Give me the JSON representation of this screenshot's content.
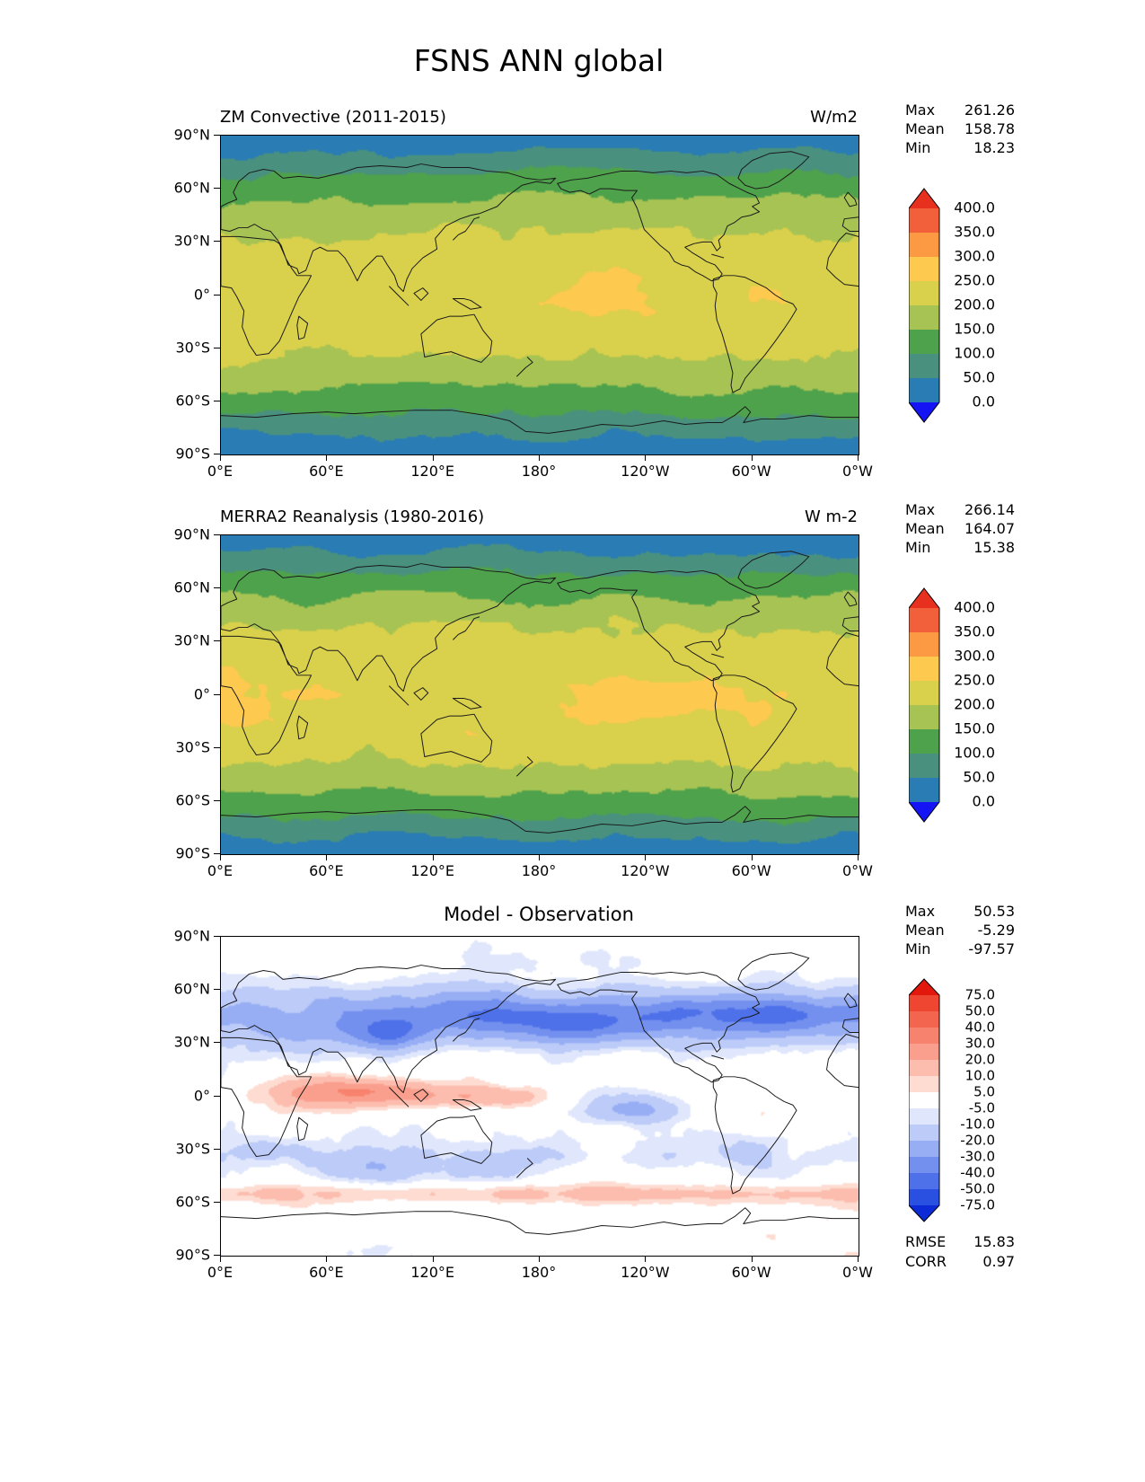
{
  "page_title": "FSNS ANN global",
  "axes": {
    "lat_ticks": [
      "90°N",
      "60°N",
      "30°N",
      "0°",
      "30°S",
      "60°S",
      "90°S"
    ],
    "lon_ticks": [
      "0°E",
      "60°E",
      "120°E",
      "180°",
      "120°W",
      "60°W",
      "0°W"
    ]
  },
  "panels": [
    {
      "title": "ZM Convective (2011-2015)",
      "units": "W/m2",
      "stats": {
        "max_label": "Max",
        "max": "261.26",
        "mean_label": "Mean",
        "mean": "158.78",
        "min_label": "Min",
        "min": "18.23"
      },
      "colorbar": {
        "tick_labels": [
          "400.0",
          "350.0",
          "300.0",
          "250.0",
          "200.0",
          "150.0",
          "100.0",
          "50.0",
          "0.0"
        ],
        "levels": [
          400,
          350,
          300,
          250,
          200,
          150,
          100,
          50,
          0
        ],
        "segment_colors": [
          "#f2603b",
          "#fb9a42",
          "#fdc94f",
          "#d9d04b",
          "#a6c353",
          "#4fa24c",
          "#49917e",
          "#2a7cb4"
        ],
        "over_color": "#e8301f",
        "under_color": "#1414f5"
      }
    },
    {
      "title": "MERRA2 Reanalysis (1980-2016)",
      "units": "W m-2",
      "stats": {
        "max_label": "Max",
        "max": "266.14",
        "mean_label": "Mean",
        "mean": "164.07",
        "min_label": "Min",
        "min": "15.38"
      },
      "colorbar": {
        "tick_labels": [
          "400.0",
          "350.0",
          "300.0",
          "250.0",
          "200.0",
          "150.0",
          "100.0",
          "50.0",
          "0.0"
        ],
        "levels": [
          400,
          350,
          300,
          250,
          200,
          150,
          100,
          50,
          0
        ],
        "segment_colors": [
          "#f2603b",
          "#fb9a42",
          "#fdc94f",
          "#d9d04b",
          "#a6c353",
          "#4fa24c",
          "#49917e",
          "#2a7cb4"
        ],
        "over_color": "#e8301f",
        "under_color": "#1414f5"
      }
    },
    {
      "title": "Model - Observation",
      "units": "",
      "stats": {
        "max_label": "Max",
        "max": "50.53",
        "mean_label": "Mean",
        "mean": "-5.29",
        "min_label": "Min",
        "min": "-97.57"
      },
      "extra_stats": {
        "rmse_label": "RMSE",
        "rmse": "15.83",
        "corr_label": "CORR",
        "corr": "0.97"
      },
      "colorbar": {
        "tick_labels": [
          "75.0",
          "50.0",
          "40.0",
          "30.0",
          "20.0",
          "10.0",
          "5.0",
          "-5.0",
          "-10.0",
          "-20.0",
          "-30.0",
          "-40.0",
          "-50.0",
          "-75.0"
        ],
        "levels": [
          75,
          50,
          40,
          30,
          20,
          10,
          5,
          -5,
          -10,
          -20,
          -30,
          -40,
          -50,
          -75
        ],
        "segment_colors": [
          "#ee4630",
          "#f3654e",
          "#f7836e",
          "#fa9f8d",
          "#fcbcae",
          "#fedcd2",
          "#ffffff",
          "#e0e7fc",
          "#bccbf8",
          "#97aef4",
          "#7390ef",
          "#4e70e9",
          "#2a50e2"
        ],
        "over_color": "#e2180d",
        "under_color": "#0c2bd6"
      }
    }
  ],
  "chart_data": [
    {
      "type": "heatmap",
      "name": "ZM Convective (2011-2015)",
      "variable": "FSNS",
      "season": "ANN",
      "region": "global",
      "units": "W/m2",
      "projection": "lat-lon",
      "lat_range": [
        -90,
        90
      ],
      "lon_range": [
        0,
        360
      ],
      "contour_levels": [
        0,
        50,
        100,
        150,
        200,
        250,
        300,
        350,
        400
      ],
      "stats": {
        "max": 261.26,
        "mean": 158.78,
        "min": 18.23
      },
      "description": "Zonally-banded net surface shortwave flux: ~200-250 W/m2 in tropics, decreasing toward poles to 0-50 W/m2"
    },
    {
      "type": "heatmap",
      "name": "MERRA2 Reanalysis (1980-2016)",
      "variable": "FSNS",
      "season": "ANN",
      "region": "global",
      "units": "W m-2",
      "projection": "lat-lon",
      "lat_range": [
        -90,
        90
      ],
      "lon_range": [
        0,
        360
      ],
      "contour_levels": [
        0,
        50,
        100,
        150,
        200,
        250,
        300,
        350,
        400
      ],
      "stats": {
        "max": 266.14,
        "mean": 164.07,
        "min": 15.38
      },
      "description": "Same zonal structure as model with 250-300 W/m2 maxima in the tropical eastern Pacific"
    },
    {
      "type": "heatmap",
      "name": "Model - Observation",
      "variable": "FSNS difference",
      "season": "ANN",
      "region": "global",
      "units": "W/m2",
      "projection": "lat-lon",
      "lat_range": [
        -90,
        90
      ],
      "lon_range": [
        0,
        360
      ],
      "contour_levels": [
        -75,
        -50,
        -40,
        -30,
        -20,
        -10,
        -5,
        5,
        10,
        20,
        30,
        40,
        50,
        75
      ],
      "stats": {
        "max": 50.53,
        "mean": -5.29,
        "min": -97.57,
        "rmse": 15.83,
        "corr": 0.97
      },
      "description": "Negative (blue) bias band across NH midlatitudes, positive (red) bias along equatorial Indian Ocean / west Pacific, negative pocket in SE tropical Pacific, weak positive ring near 55S"
    }
  ]
}
